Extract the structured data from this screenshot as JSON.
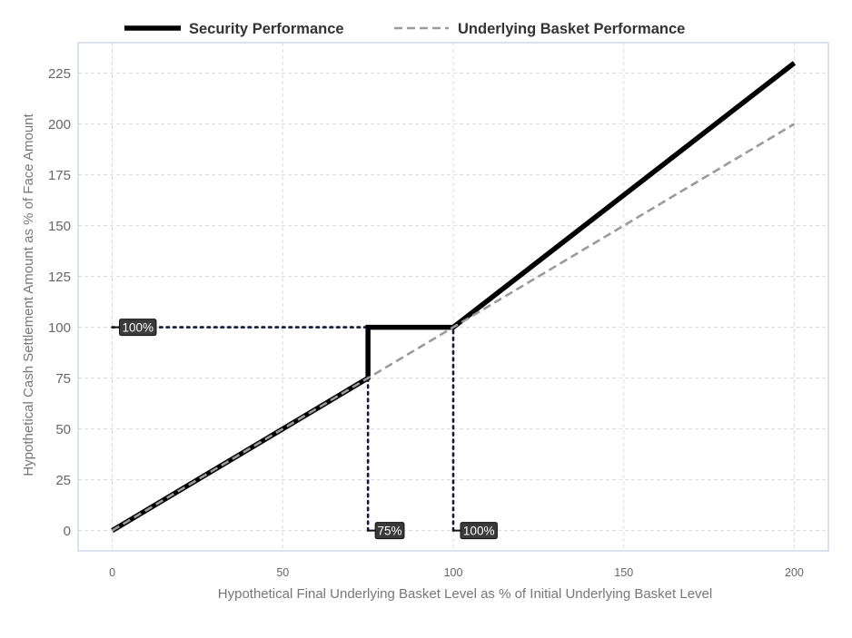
{
  "chart_data": {
    "type": "line",
    "title": "",
    "xlabel": "Hypothetical Final Underlying Basket Level as % of Initial Underlying Basket Level",
    "ylabel": "Hypothetical Cash Settlement Amount as % of Face Amount",
    "xlim": [
      -10,
      210
    ],
    "ylim": [
      -10,
      240
    ],
    "xticks": [
      0,
      50,
      100,
      150,
      200
    ],
    "yticks": [
      0,
      25,
      50,
      75,
      100,
      125,
      150,
      175,
      200,
      225
    ],
    "grid": true,
    "legend_position": "top-center",
    "series": [
      {
        "name": "Security Performance",
        "style": "solid",
        "color": "#000000",
        "x": [
          0,
          75,
          75,
          100,
          200
        ],
        "y": [
          0,
          75,
          100,
          100,
          230
        ]
      },
      {
        "name": "Underlying Basket Performance",
        "style": "dashed",
        "color": "#9a9a9f",
        "x": [
          0,
          200
        ],
        "y": [
          0,
          200
        ]
      }
    ],
    "reference_lines": [
      {
        "x": [
          0,
          75
        ],
        "y": [
          100,
          100
        ]
      },
      {
        "x": [
          75,
          75
        ],
        "y": [
          0,
          100
        ]
      },
      {
        "x": [
          100,
          100
        ],
        "y": [
          0,
          100
        ]
      }
    ],
    "annotations": [
      {
        "text": "100%",
        "x": 0,
        "y": 100
      },
      {
        "text": "75%",
        "x": 75,
        "y": 0
      },
      {
        "text": "100%",
        "x": 100,
        "y": 0
      }
    ]
  }
}
